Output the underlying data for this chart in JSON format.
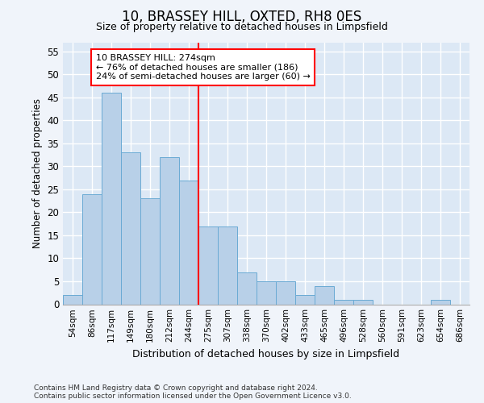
{
  "title": "10, BRASSEY HILL, OXTED, RH8 0ES",
  "subtitle": "Size of property relative to detached houses in Limpsfield",
  "xlabel": "Distribution of detached houses by size in Limpsfield",
  "ylabel": "Number of detached properties",
  "bar_color": "#b8d0e8",
  "bar_edge_color": "#6aaad4",
  "background_color": "#dce8f5",
  "grid_color": "#ffffff",
  "fig_bg_color": "#f0f4fa",
  "categories": [
    "54sqm",
    "86sqm",
    "117sqm",
    "149sqm",
    "180sqm",
    "212sqm",
    "244sqm",
    "275sqm",
    "307sqm",
    "338sqm",
    "370sqm",
    "402sqm",
    "433sqm",
    "465sqm",
    "496sqm",
    "528sqm",
    "560sqm",
    "591sqm",
    "623sqm",
    "654sqm",
    "686sqm"
  ],
  "values": [
    2,
    24,
    46,
    33,
    23,
    32,
    27,
    17,
    17,
    7,
    5,
    5,
    2,
    4,
    1,
    1,
    0,
    0,
    0,
    1,
    0
  ],
  "ylim": [
    0,
    57
  ],
  "yticks": [
    0,
    5,
    10,
    15,
    20,
    25,
    30,
    35,
    40,
    45,
    50,
    55
  ],
  "property_line_x": 7.0,
  "annotation_text_line1": "10 BRASSEY HILL: 274sqm",
  "annotation_text_line2": "← 76% of detached houses are smaller (186)",
  "annotation_text_line3": "24% of semi-detached houses are larger (60) →",
  "footnote1": "Contains HM Land Registry data © Crown copyright and database right 2024.",
  "footnote2": "Contains public sector information licensed under the Open Government Licence v3.0."
}
